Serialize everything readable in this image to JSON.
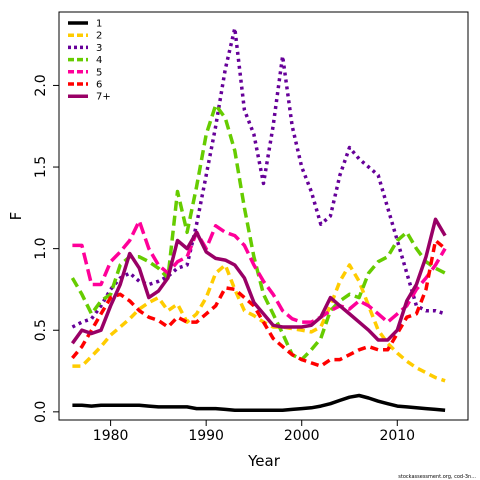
{
  "chart_data": {
    "type": "line",
    "xlabel": "Year",
    "ylabel": "F",
    "xlim": [
      1974.6,
      2017.4
    ],
    "ylim": [
      -0.05,
      2.45
    ],
    "xticks": [
      1980,
      1990,
      2000,
      2010
    ],
    "yticks": [
      0.0,
      0.5,
      1.0,
      1.5,
      2.0
    ],
    "ytick_labels": [
      "0.0",
      "0.5",
      "1.0",
      "1.5",
      "2.0"
    ],
    "grid": false,
    "legend_position": "top-left",
    "series": [
      {
        "name": "1",
        "color": "#000000",
        "dash": "solid",
        "x": [
          1976,
          1977,
          1978,
          1979,
          1980,
          1981,
          1982,
          1983,
          1984,
          1985,
          1986,
          1987,
          1988,
          1989,
          1990,
          1991,
          1992,
          1993,
          1994,
          1995,
          1996,
          1997,
          1998,
          1999,
          2000,
          2001,
          2002,
          2003,
          2004,
          2005,
          2006,
          2007,
          2008,
          2009,
          2010,
          2011,
          2012,
          2013,
          2014,
          2015
        ],
        "y": [
          0.04,
          0.04,
          0.035,
          0.04,
          0.04,
          0.04,
          0.04,
          0.04,
          0.035,
          0.03,
          0.03,
          0.03,
          0.03,
          0.02,
          0.02,
          0.02,
          0.015,
          0.01,
          0.01,
          0.01,
          0.01,
          0.01,
          0.01,
          0.015,
          0.02,
          0.025,
          0.035,
          0.05,
          0.07,
          0.09,
          0.1,
          0.085,
          0.065,
          0.05,
          0.035,
          0.03,
          0.025,
          0.02,
          0.015,
          0.01
        ]
      },
      {
        "name": "2",
        "color": "#FFCC00",
        "dash": "8,5",
        "x": [
          1976,
          1977,
          1978,
          1979,
          1980,
          1981,
          1982,
          1983,
          1984,
          1985,
          1986,
          1987,
          1988,
          1989,
          1990,
          1991,
          1992,
          1993,
          1994,
          1995,
          1996,
          1997,
          1998,
          1999,
          2000,
          2001,
          2002,
          2003,
          2004,
          2005,
          2006,
          2007,
          2008,
          2009,
          2010,
          2011,
          2012,
          2013,
          2014,
          2015
        ],
        "y": [
          0.28,
          0.28,
          0.34,
          0.4,
          0.47,
          0.52,
          0.57,
          0.63,
          0.67,
          0.7,
          0.62,
          0.66,
          0.55,
          0.6,
          0.7,
          0.85,
          0.9,
          0.75,
          0.62,
          0.59,
          0.55,
          0.52,
          0.52,
          0.51,
          0.5,
          0.49,
          0.52,
          0.65,
          0.8,
          0.9,
          0.8,
          0.65,
          0.5,
          0.42,
          0.36,
          0.31,
          0.27,
          0.24,
          0.21,
          0.19
        ]
      },
      {
        "name": "3",
        "color": "#660099",
        "dash": "3,4",
        "x": [
          1976,
          1977,
          1978,
          1979,
          1980,
          1981,
          1982,
          1983,
          1984,
          1985,
          1986,
          1987,
          1988,
          1989,
          1990,
          1991,
          1992,
          1993,
          1994,
          1995,
          1996,
          1997,
          1998,
          1999,
          2000,
          2001,
          2002,
          2003,
          2004,
          2005,
          2006,
          2007,
          2008,
          2009,
          2010,
          2011,
          2012,
          2013,
          2014,
          2015
        ],
        "y": [
          0.52,
          0.55,
          0.57,
          0.65,
          0.75,
          0.82,
          0.85,
          0.8,
          0.78,
          0.8,
          0.83,
          0.88,
          0.9,
          1.15,
          1.45,
          1.75,
          2.1,
          2.35,
          1.85,
          1.7,
          1.4,
          1.75,
          2.18,
          1.75,
          1.5,
          1.35,
          1.15,
          1.2,
          1.45,
          1.62,
          1.55,
          1.5,
          1.45,
          1.25,
          1.05,
          0.85,
          0.65,
          0.62,
          0.62,
          0.6
        ]
      },
      {
        "name": "4",
        "color": "#66CC00",
        "dash": "10,5",
        "x": [
          1976,
          1977,
          1978,
          1979,
          1980,
          1981,
          1982,
          1983,
          1984,
          1985,
          1986,
          1987,
          1988,
          1989,
          1990,
          1991,
          1992,
          1993,
          1994,
          1995,
          1996,
          1997,
          1998,
          1999,
          2000,
          2001,
          2002,
          2003,
          2004,
          2005,
          2006,
          2007,
          2008,
          2009,
          2010,
          2011,
          2012,
          2013,
          2014,
          2015
        ],
        "y": [
          0.82,
          0.72,
          0.6,
          0.68,
          0.72,
          0.9,
          0.95,
          0.95,
          0.92,
          0.88,
          0.82,
          1.35,
          1.1,
          1.38,
          1.7,
          1.88,
          1.8,
          1.6,
          1.25,
          0.95,
          0.72,
          0.6,
          0.48,
          0.35,
          0.32,
          0.38,
          0.45,
          0.62,
          0.68,
          0.72,
          0.7,
          0.85,
          0.92,
          0.95,
          1.05,
          1.1,
          1.0,
          0.92,
          0.88,
          0.85
        ]
      },
      {
        "name": "5",
        "color": "#FF0099",
        "dash": "12,5",
        "x": [
          1976,
          1977,
          1978,
          1979,
          1980,
          1981,
          1982,
          1983,
          1984,
          1985,
          1986,
          1987,
          1988,
          1989,
          1990,
          1991,
          1992,
          1993,
          1994,
          1995,
          1996,
          1997,
          1998,
          1999,
          2000,
          2001,
          2002,
          2003,
          2004,
          2005,
          2006,
          2007,
          2008,
          2009,
          2010,
          2011,
          2012,
          2013,
          2014,
          2015
        ],
        "y": [
          1.02,
          1.02,
          0.78,
          0.78,
          0.92,
          0.98,
          1.05,
          1.17,
          1.0,
          0.9,
          0.85,
          0.92,
          0.95,
          1.1,
          1.0,
          1.14,
          1.1,
          1.08,
          1.02,
          0.9,
          0.8,
          0.72,
          0.62,
          0.57,
          0.55,
          0.55,
          0.58,
          0.62,
          0.65,
          0.63,
          0.68,
          0.65,
          0.6,
          0.55,
          0.6,
          0.65,
          0.75,
          0.82,
          0.9,
          1.0
        ]
      },
      {
        "name": "6",
        "color": "#FF0000",
        "dash": "8,5",
        "x": [
          1976,
          1977,
          1978,
          1979,
          1980,
          1981,
          1982,
          1983,
          1984,
          1985,
          1986,
          1987,
          1988,
          1989,
          1990,
          1991,
          1992,
          1993,
          1994,
          1995,
          1996,
          1997,
          1998,
          1999,
          2000,
          2001,
          2002,
          2003,
          2004,
          2005,
          2006,
          2007,
          2008,
          2009,
          2010,
          2011,
          2012,
          2013,
          2014,
          2015
        ],
        "y": [
          0.33,
          0.4,
          0.5,
          0.6,
          0.7,
          0.72,
          0.68,
          0.62,
          0.58,
          0.56,
          0.52,
          0.58,
          0.55,
          0.55,
          0.6,
          0.65,
          0.76,
          0.75,
          0.7,
          0.65,
          0.55,
          0.45,
          0.4,
          0.35,
          0.32,
          0.3,
          0.28,
          0.32,
          0.32,
          0.35,
          0.38,
          0.4,
          0.38,
          0.38,
          0.48,
          0.58,
          0.6,
          0.75,
          1.05,
          1.0
        ]
      },
      {
        "name": "7+",
        "color": "#990066",
        "dash": "solid",
        "x": [
          1976,
          1977,
          1978,
          1979,
          1980,
          1981,
          1982,
          1983,
          1984,
          1985,
          1986,
          1987,
          1988,
          1989,
          1990,
          1991,
          1992,
          1993,
          1994,
          1995,
          1996,
          1997,
          1998,
          1999,
          2000,
          2001,
          2002,
          2003,
          2004,
          2005,
          2006,
          2007,
          2008,
          2009,
          2010,
          2011,
          2012,
          2013,
          2014,
          2015
        ],
        "y": [
          0.42,
          0.5,
          0.48,
          0.5,
          0.65,
          0.78,
          0.97,
          0.88,
          0.7,
          0.74,
          0.82,
          1.05,
          1.0,
          1.1,
          0.98,
          0.94,
          0.93,
          0.9,
          0.82,
          0.67,
          0.6,
          0.53,
          0.52,
          0.52,
          0.52,
          0.53,
          0.58,
          0.7,
          0.65,
          0.6,
          0.55,
          0.5,
          0.44,
          0.44,
          0.5,
          0.68,
          0.78,
          0.95,
          1.18,
          1.08
        ]
      }
    ]
  },
  "footer": "stockassessment.org, cod-3n..."
}
